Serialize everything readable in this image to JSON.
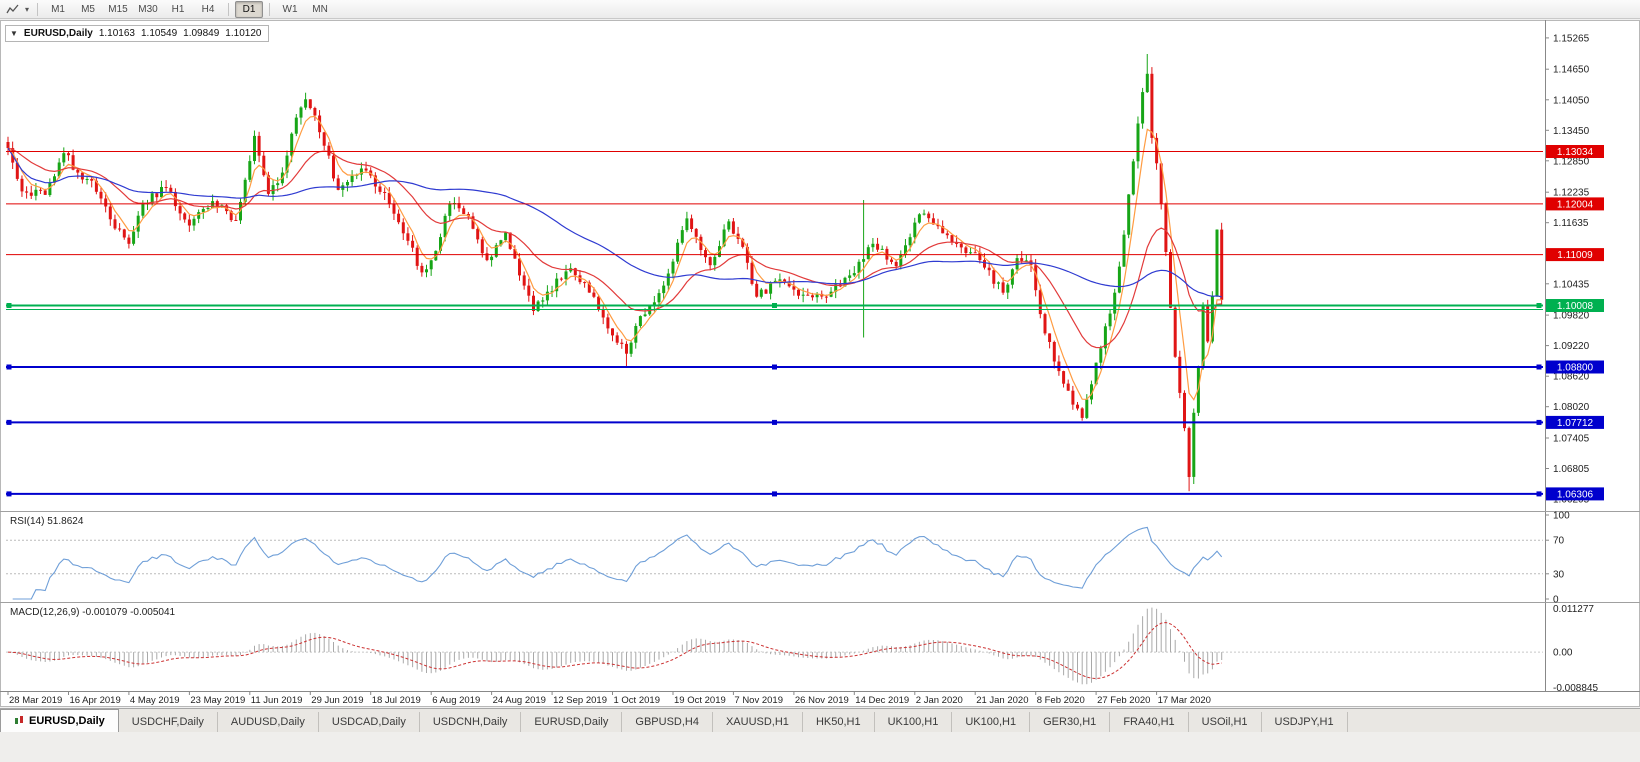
{
  "toolbar": {
    "timeframes": [
      {
        "label": "M1"
      },
      {
        "label": "M5"
      },
      {
        "label": "M15"
      },
      {
        "label": "M30"
      },
      {
        "label": "H1"
      },
      {
        "label": "H4"
      },
      {
        "label": "D1",
        "active": true,
        "sep_before": true
      },
      {
        "label": "W1",
        "sep_before": true
      },
      {
        "label": "MN"
      }
    ]
  },
  "chart": {
    "header": {
      "collapse_icon": "▼",
      "symbol": "EURUSD,Daily",
      "open": "1.10163",
      "high": "1.10549",
      "low": "1.09849",
      "close": "1.10120"
    },
    "y_axis_ticks": [
      "1.15265",
      "1.14650",
      "1.14050",
      "1.13450",
      "1.12850",
      "1.12235",
      "1.11635",
      "1.11035",
      "1.10435",
      "1.09820",
      "1.09220",
      "1.08620",
      "1.08020",
      "1.07405",
      "1.06805",
      "1.06205"
    ],
    "levels": [
      {
        "price": 1.13034,
        "label": "1.13034",
        "color": "#e00000",
        "width": 1
      },
      {
        "price": 1.12004,
        "label": "1.12004",
        "color": "#e00000",
        "width": 1
      },
      {
        "price": 1.11009,
        "label": "1.11009",
        "color": "#e00000",
        "width": 1
      },
      {
        "price": 1.10008,
        "label": "1.10008",
        "color": "#00b050",
        "width": 2,
        "handles": true
      },
      {
        "price": 1.0993,
        "label": "",
        "color": "#00b050",
        "width": 1
      },
      {
        "price": 1.088,
        "label": "1.08800",
        "color": "#0000cd",
        "width": 2,
        "handles": true
      },
      {
        "price": 1.07712,
        "label": "1.07712",
        "color": "#0000cd",
        "width": 2,
        "handles": true
      },
      {
        "price": 1.06306,
        "label": "1.06306",
        "color": "#0000cd",
        "width": 2,
        "handles": true
      }
    ],
    "x_axis_dates": [
      "28 Mar 2019",
      "16 Apr 2019",
      "4 May 2019",
      "23 May 2019",
      "11 Jun 2019",
      "29 Jun 2019",
      "18 Jul 2019",
      "6 Aug 2019",
      "24 Aug 2019",
      "12 Sep 2019",
      "1 Oct 2019",
      "19 Oct 2019",
      "7 Nov 2019",
      "26 Nov 2019",
      "14 Dec 2019",
      "2 Jan 2020",
      "21 Jan 2020",
      "8 Feb 2020",
      "27 Feb 2020",
      "17 Mar 2020"
    ]
  },
  "indicators": {
    "rsi": {
      "label": "RSI(14) 51.8624",
      "period": 14,
      "current": "51.8624",
      "axis": [
        "100",
        "70",
        "30",
        "0"
      ],
      "guide_levels": [
        70,
        30
      ],
      "color": "#6f9fd8"
    },
    "macd": {
      "label": "MACD(12,26,9) -0.001079 -0.005041",
      "fast": 12,
      "slow": 26,
      "signal_period": 9,
      "main_value": "-0.001079",
      "signal_value": "-0.005041",
      "axis_max": "0.011277",
      "axis_zero": "0.00",
      "axis_min": "-0.008845",
      "hist_color": "#a9a9a9",
      "signal_color": "#cc3333"
    }
  },
  "tabs": [
    {
      "label": "EURUSD,Daily",
      "active": true
    },
    {
      "label": "USDCHF,Daily"
    },
    {
      "label": "AUDUSD,Daily"
    },
    {
      "label": "USDCAD,Daily"
    },
    {
      "label": "USDCNH,Daily"
    },
    {
      "label": "EURUSD,Daily"
    },
    {
      "label": "GBPUSD,H4"
    },
    {
      "label": "XAUUSD,H1"
    },
    {
      "label": "HK50,H1"
    },
    {
      "label": "UK100,H1"
    },
    {
      "label": "UK100,H1"
    },
    {
      "label": "GER30,H1"
    },
    {
      "label": "FRA40,H1"
    },
    {
      "label": "USOil,H1"
    },
    {
      "label": "USDJPY,H1"
    }
  ],
  "chart_data": {
    "type": "candlestick",
    "symbol": "EURUSD",
    "timeframe": "Daily",
    "visible_start": "28 Mar 2019",
    "visible_end": "Apr 2020",
    "price_range": [
      1.0601,
      1.1546
    ],
    "num_candles": 262,
    "up_color": "#17a517",
    "down_color": "#e01515",
    "close_anchors": [
      [
        0,
        1.131
      ],
      [
        3,
        1.1225
      ],
      [
        8,
        1.1218
      ],
      [
        12,
        1.13
      ],
      [
        15,
        1.1262
      ],
      [
        18,
        1.1246
      ],
      [
        23,
        1.1152
      ],
      [
        26,
        1.1122
      ],
      [
        29,
        1.12
      ],
      [
        34,
        1.1232
      ],
      [
        39,
        1.1158
      ],
      [
        44,
        1.1206
      ],
      [
        49,
        1.1168
      ],
      [
        53,
        1.1334
      ],
      [
        56,
        1.122
      ],
      [
        59,
        1.1262
      ],
      [
        62,
        1.137
      ],
      [
        64,
        1.1406
      ],
      [
        66,
        1.1374
      ],
      [
        71,
        1.1228
      ],
      [
        76,
        1.127
      ],
      [
        81,
        1.1222
      ],
      [
        86,
        1.1128
      ],
      [
        89,
        1.1066
      ],
      [
        92,
        1.1108
      ],
      [
        95,
        1.12
      ],
      [
        99,
        1.1176
      ],
      [
        103,
        1.109
      ],
      [
        107,
        1.1144
      ],
      [
        110,
        1.106
      ],
      [
        113,
        1.099
      ],
      [
        116,
        1.1028
      ],
      [
        121,
        1.1074
      ],
      [
        126,
        1.1018
      ],
      [
        130,
        1.0942
      ],
      [
        133,
        1.0906
      ],
      [
        136,
        1.098
      ],
      [
        141,
        1.104
      ],
      [
        146,
        1.1172
      ],
      [
        151,
        1.108
      ],
      [
        155,
        1.1166
      ],
      [
        158,
        1.1116
      ],
      [
        161,
        1.1018
      ],
      [
        166,
        1.1052
      ],
      [
        171,
        1.1022
      ],
      [
        176,
        1.1018
      ],
      [
        181,
        1.106
      ],
      [
        186,
        1.1122
      ],
      [
        191,
        1.1078
      ],
      [
        196,
        1.118
      ],
      [
        199,
        1.116
      ],
      [
        204,
        1.1122
      ],
      [
        209,
        1.109
      ],
      [
        214,
        1.1026
      ],
      [
        217,
        1.1094
      ],
      [
        220,
        1.108
      ],
      [
        223,
        1.0946
      ],
      [
        226,
        1.0872
      ],
      [
        229,
        1.0806
      ],
      [
        231,
        1.078
      ],
      [
        233,
        1.0846
      ],
      [
        236,
        1.096
      ],
      [
        238,
        1.1026
      ],
      [
        240,
        1.114
      ],
      [
        242,
        1.1284
      ],
      [
        244,
        1.142
      ],
      [
        245,
        1.1456
      ],
      [
        246,
        1.133
      ],
      [
        247,
        1.128
      ],
      [
        249,
        1.1106
      ],
      [
        251,
        1.09
      ],
      [
        253,
        1.076
      ],
      [
        254,
        1.0664
      ],
      [
        255,
        1.079
      ],
      [
        256,
        1.088
      ],
      [
        257,
        1.1
      ],
      [
        258,
        1.093
      ],
      [
        259,
        1.102
      ],
      [
        260,
        1.115
      ],
      [
        261,
        1.1012
      ]
    ],
    "wick_extremes": [
      {
        "i": 64,
        "high": 1.1412
      },
      {
        "i": 133,
        "low": 1.0879
      },
      {
        "i": 184,
        "high": 1.1208,
        "low": 1.0938
      },
      {
        "i": 231,
        "low": 1.0778
      },
      {
        "i": 245,
        "high": 1.1495
      },
      {
        "i": 254,
        "low": 1.0636
      }
    ],
    "moving_averages": [
      {
        "period": 5,
        "type": "ema",
        "color": "#ff9c42"
      },
      {
        "period": 21,
        "type": "ema",
        "color": "#e23b3b"
      },
      {
        "period": 55,
        "type": "sma",
        "color": "#2f3bd1"
      }
    ],
    "horizontal_levels": [
      1.13034,
      1.12004,
      1.11009,
      1.10008,
      1.0993,
      1.088,
      1.07712,
      1.06306
    ]
  }
}
